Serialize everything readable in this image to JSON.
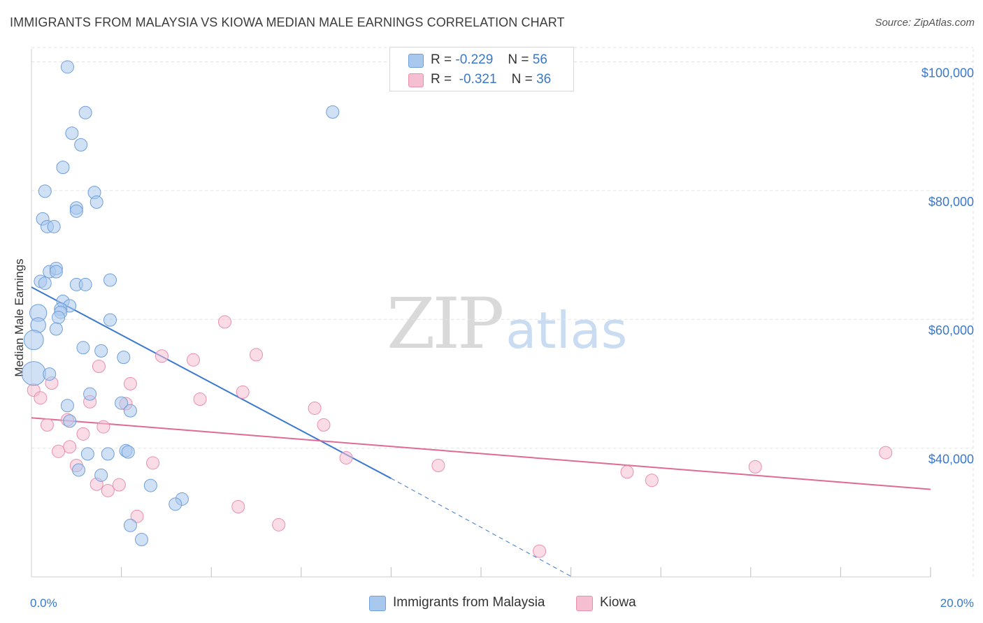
{
  "header": {
    "title": "IMMIGRANTS FROM MALAYSIA VS KIOWA MEDIAN MALE EARNINGS CORRELATION CHART",
    "source": "Source: ZipAtlas.com"
  },
  "watermark": {
    "zip": "ZIP",
    "atlas": "atlas"
  },
  "legend_top": {
    "rows": [
      {
        "r_label": "R =",
        "r_value": "-0.229",
        "n_label": "N =",
        "n_value": "56"
      },
      {
        "r_label": "R =",
        "r_value": "-0.321",
        "n_label": "N =",
        "n_value": "36"
      }
    ]
  },
  "legend_bottom": {
    "items": [
      "Immigrants from Malaysia",
      "Kiowa"
    ]
  },
  "colors": {
    "blue_fill": "#a9c8ee",
    "blue_stroke": "#6f9fd8",
    "blue_line": "#3a78d0",
    "pink_fill": "#f6bfd1",
    "pink_stroke": "#e98fae",
    "pink_line": "#e06a95",
    "tick_text": "#3a78c9",
    "grid": "#e2e2e2"
  },
  "chart_data": {
    "type": "scatter",
    "title": "IMMIGRANTS FROM MALAYSIA VS KIOWA MEDIAN MALE EARNINGS CORRELATION CHART",
    "xlabel": "",
    "ylabel": "Median Male Earnings",
    "xlim": [
      0,
      20
    ],
    "ylim": [
      20000,
      102000
    ],
    "x_tick_labels": [
      {
        "value": 0,
        "label": "0.0%"
      },
      {
        "value": 20,
        "label": "20.0%"
      }
    ],
    "x_minor_ticks": [
      2,
      4,
      6,
      8,
      10,
      12,
      14,
      16,
      18,
      20
    ],
    "y_ticks": [
      {
        "value": 40000,
        "label": "$40,000"
      },
      {
        "value": 60000,
        "label": "$60,000"
      },
      {
        "value": 80000,
        "label": "$80,000"
      },
      {
        "value": 100000,
        "label": "$100,000"
      }
    ],
    "series": [
      {
        "name": "Immigrants from Malaysia",
        "color": "blue",
        "R": -0.229,
        "N": 56,
        "trend": {
          "x0": 0,
          "y0": 65000,
          "x1": 8.0,
          "y1": 35300,
          "dash_to_x": 12.0,
          "dash_to_y": 20100
        },
        "points": [
          [
            0.8,
            99200
          ],
          [
            1.2,
            92100
          ],
          [
            0.9,
            88900
          ],
          [
            1.1,
            87100
          ],
          [
            0.7,
            83600
          ],
          [
            0.3,
            79900
          ],
          [
            1.4,
            79700
          ],
          [
            1.45,
            78200
          ],
          [
            1.0,
            77300
          ],
          [
            1.0,
            76800
          ],
          [
            0.25,
            75600
          ],
          [
            0.35,
            74400
          ],
          [
            0.5,
            74400
          ],
          [
            0.4,
            67400
          ],
          [
            0.55,
            67900
          ],
          [
            0.55,
            67400
          ],
          [
            0.2,
            65900
          ],
          [
            0.3,
            65600
          ],
          [
            1.0,
            65400
          ],
          [
            1.2,
            65400
          ],
          [
            1.75,
            66100
          ],
          [
            0.7,
            62800
          ],
          [
            0.85,
            62100
          ],
          [
            0.65,
            61600
          ],
          [
            0.65,
            61100
          ],
          [
            0.6,
            60300
          ],
          [
            0.15,
            61000
          ],
          [
            0.15,
            59100
          ],
          [
            0.55,
            58500
          ],
          [
            1.75,
            59900
          ],
          [
            0.05,
            56800
          ],
          [
            1.15,
            55600
          ],
          [
            1.55,
            55100
          ],
          [
            2.05,
            54100
          ],
          [
            0.05,
            51600
          ],
          [
            0.4,
            51500
          ],
          [
            1.3,
            48400
          ],
          [
            2.0,
            47000
          ],
          [
            0.8,
            46600
          ],
          [
            2.2,
            45800
          ],
          [
            0.85,
            44200
          ],
          [
            1.25,
            39100
          ],
          [
            1.7,
            39100
          ],
          [
            2.1,
            39600
          ],
          [
            2.15,
            39400
          ],
          [
            1.05,
            36600
          ],
          [
            1.55,
            35800
          ],
          [
            2.65,
            34200
          ],
          [
            3.35,
            32100
          ],
          [
            3.2,
            31300
          ],
          [
            2.2,
            28000
          ],
          [
            2.45,
            25800
          ],
          [
            6.7,
            92200
          ]
        ],
        "sizes": [
          1,
          1,
          1,
          1,
          1,
          1,
          1,
          1,
          1,
          1,
          1,
          1,
          1,
          1,
          1,
          1,
          1,
          1,
          1,
          1,
          1,
          1,
          1,
          1,
          1,
          1,
          1.35,
          1.2,
          1,
          1,
          1.55,
          1,
          1,
          1,
          1.9,
          1,
          1,
          1,
          1,
          1,
          1,
          1,
          1,
          1,
          1,
          1,
          1,
          1,
          1,
          1,
          1,
          1,
          1
        ]
      },
      {
        "name": "Kiowa",
        "color": "pink",
        "R": -0.321,
        "N": 36,
        "trend": {
          "x0": 0,
          "y0": 44700,
          "x1": 20,
          "y1": 33600
        },
        "points": [
          [
            0.05,
            49000
          ],
          [
            0.2,
            47800
          ],
          [
            0.45,
            50100
          ],
          [
            0.35,
            43600
          ],
          [
            0.8,
            44400
          ],
          [
            0.85,
            40200
          ],
          [
            0.6,
            39500
          ],
          [
            1.15,
            42200
          ],
          [
            1.3,
            47200
          ],
          [
            1.5,
            52700
          ],
          [
            1.6,
            43300
          ],
          [
            2.1,
            46900
          ],
          [
            2.2,
            50000
          ],
          [
            1.0,
            37300
          ],
          [
            1.45,
            34400
          ],
          [
            1.7,
            33400
          ],
          [
            1.95,
            34300
          ],
          [
            2.7,
            37700
          ],
          [
            2.35,
            29400
          ],
          [
            2.9,
            54300
          ],
          [
            3.6,
            53700
          ],
          [
            3.75,
            47600
          ],
          [
            4.3,
            59600
          ],
          [
            4.7,
            48700
          ],
          [
            5.0,
            54500
          ],
          [
            4.6,
            30900
          ],
          [
            5.5,
            28100
          ],
          [
            6.3,
            46200
          ],
          [
            6.5,
            43600
          ],
          [
            7.0,
            38500
          ],
          [
            9.05,
            37300
          ],
          [
            13.25,
            36300
          ],
          [
            13.8,
            35000
          ],
          [
            16.1,
            37100
          ],
          [
            19.0,
            39300
          ],
          [
            11.3,
            24000
          ]
        ]
      }
    ]
  }
}
